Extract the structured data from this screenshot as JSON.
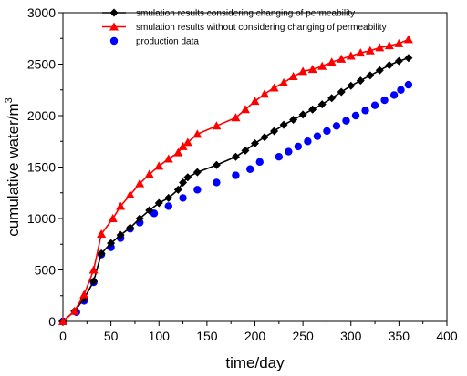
{
  "chart_data": {
    "type": "line",
    "title": "",
    "xlabel": "time/day",
    "ylabel_main": "cumulative water/m",
    "ylabel_sup": "3",
    "xlim": [
      0,
      400
    ],
    "ylim": [
      0,
      3000
    ],
    "xticks": [
      0,
      50,
      100,
      150,
      200,
      250,
      300,
      350,
      400
    ],
    "yticks": [
      0,
      500,
      1000,
      1500,
      2000,
      2500,
      3000
    ],
    "grid": false,
    "legend_position": "top-left",
    "series": [
      {
        "name": "smulation results considering changing of permeability",
        "color": "#000000",
        "marker": "diamond",
        "line": true,
        "x": [
          0,
          12,
          22,
          32,
          40,
          50,
          60,
          70,
          80,
          90,
          100,
          110,
          120,
          125,
          130,
          140,
          160,
          180,
          190,
          200,
          210,
          220,
          230,
          240,
          250,
          260,
          270,
          280,
          290,
          300,
          310,
          320,
          330,
          340,
          350,
          360
        ],
        "y": [
          0,
          100,
          220,
          390,
          660,
          760,
          840,
          910,
          1000,
          1080,
          1150,
          1200,
          1280,
          1350,
          1400,
          1450,
          1520,
          1600,
          1660,
          1730,
          1790,
          1850,
          1910,
          1960,
          2010,
          2060,
          2110,
          2170,
          2230,
          2290,
          2340,
          2390,
          2440,
          2490,
          2530,
          2560
        ]
      },
      {
        "name": "smulation results without considering changing of permeability",
        "color": "#ff0000",
        "marker": "triangle",
        "line": true,
        "x": [
          0,
          12,
          22,
          32,
          40,
          52,
          60,
          70,
          80,
          90,
          100,
          110,
          120,
          125,
          130,
          140,
          160,
          180,
          190,
          200,
          210,
          220,
          230,
          240,
          250,
          260,
          270,
          280,
          290,
          300,
          310,
          320,
          330,
          340,
          350,
          360
        ],
        "y": [
          0,
          100,
          260,
          500,
          850,
          1000,
          1120,
          1230,
          1340,
          1430,
          1510,
          1580,
          1640,
          1700,
          1740,
          1820,
          1900,
          1980,
          2060,
          2140,
          2210,
          2270,
          2320,
          2380,
          2430,
          2450,
          2480,
          2520,
          2550,
          2580,
          2610,
          2630,
          2660,
          2680,
          2700,
          2740
        ]
      },
      {
        "name": "production data",
        "color": "#0000ff",
        "marker": "circle",
        "line": false,
        "x": [
          0,
          14,
          22,
          32,
          40,
          50,
          60,
          70,
          80,
          95,
          110,
          125,
          140,
          160,
          180,
          195,
          205,
          225,
          235,
          245,
          255,
          265,
          275,
          285,
          295,
          305,
          315,
          325,
          335,
          345,
          352,
          360
        ],
        "y": [
          0,
          90,
          200,
          380,
          650,
          720,
          810,
          900,
          960,
          1050,
          1120,
          1200,
          1280,
          1350,
          1420,
          1480,
          1550,
          1600,
          1650,
          1700,
          1750,
          1800,
          1850,
          1900,
          1950,
          2000,
          2050,
          2100,
          2150,
          2200,
          2250,
          2300
        ]
      }
    ]
  }
}
